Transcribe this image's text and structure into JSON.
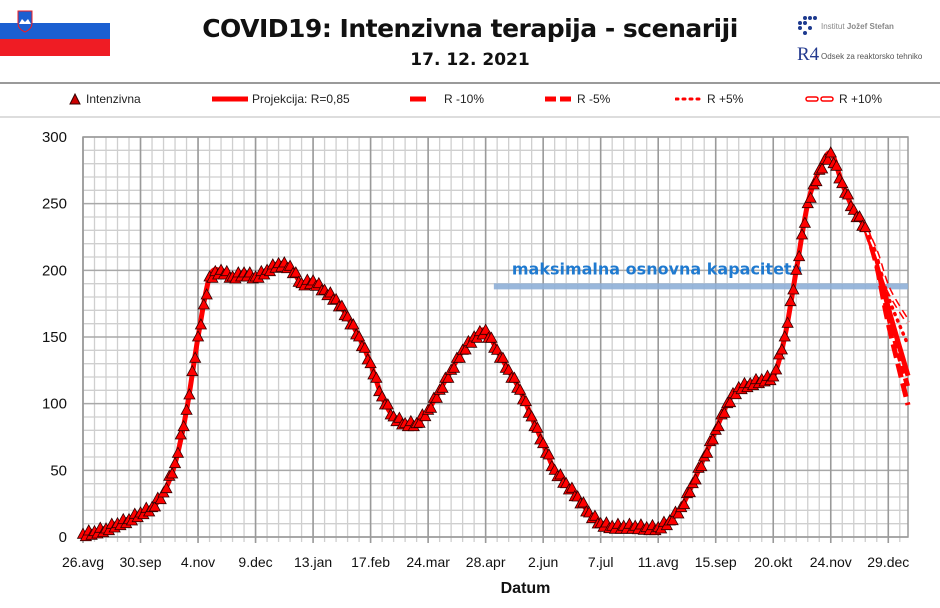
{
  "header": {
    "title": "COVID19: Intenzivna terapija - scenariji",
    "date": "17. 12. 2021",
    "flag_icon": "slovenia-flag-icon",
    "logo1_text_prefix": "Institut",
    "logo1_text_name": "Jožef Stefan",
    "logo2_mark": "R4",
    "logo2_text": "Odsek za reaktorsko tehniko"
  },
  "chart_data": {
    "type": "line",
    "title": "COVID19: Intenzivna terapija - scenariji",
    "xlabel": "Datum",
    "ylabel": "",
    "ylim": [
      0,
      300
    ],
    "yticks": [
      0,
      50,
      100,
      150,
      200,
      250,
      300
    ],
    "xlim": [
      "2020-08-26",
      "2022-01-10"
    ],
    "xticks": [
      {
        "date": "2020-08-26",
        "label": "26.avg"
      },
      {
        "date": "2020-09-30",
        "label": "30.sep"
      },
      {
        "date": "2020-11-04",
        "label": "4.nov"
      },
      {
        "date": "2020-12-09",
        "label": "9.dec"
      },
      {
        "date": "2021-01-13",
        "label": "13.jan"
      },
      {
        "date": "2021-02-17",
        "label": "17.feb"
      },
      {
        "date": "2021-03-24",
        "label": "24.mar"
      },
      {
        "date": "2021-04-28",
        "label": "28.apr"
      },
      {
        "date": "2021-06-02",
        "label": "2.jun"
      },
      {
        "date": "2021-07-07",
        "label": "7.jul"
      },
      {
        "date": "2021-08-11",
        "label": "11.avg"
      },
      {
        "date": "2021-09-15",
        "label": "15.sep"
      },
      {
        "date": "2021-10-20",
        "label": "20.okt"
      },
      {
        "date": "2021-11-24",
        "label": "24.nov"
      },
      {
        "date": "2021-12-29",
        "label": "29.dec"
      }
    ],
    "grid": true,
    "legend_position": "top",
    "colors": {
      "series": "#ff0000",
      "capacity": "#8fb0d8",
      "capacity_text": "#1f7ad0"
    },
    "capacity_line": {
      "label": "maksimalna  osnovna  kapaciteta",
      "value": 188,
      "from": "2021-05-03"
    },
    "observed": {
      "name": "Intenzivna",
      "points": [
        [
          "2020-08-26",
          2
        ],
        [
          "2020-09-02",
          4
        ],
        [
          "2020-09-09",
          6
        ],
        [
          "2020-09-16",
          10
        ],
        [
          "2020-09-23",
          13
        ],
        [
          "2020-09-30",
          18
        ],
        [
          "2020-10-07",
          22
        ],
        [
          "2020-10-14",
          33
        ],
        [
          "2020-10-21",
          55
        ],
        [
          "2020-10-28",
          95
        ],
        [
          "2020-11-04",
          150
        ],
        [
          "2020-11-11",
          195
        ],
        [
          "2020-11-18",
          200
        ],
        [
          "2020-11-25",
          195
        ],
        [
          "2020-12-02",
          198
        ],
        [
          "2020-12-09",
          195
        ],
        [
          "2020-12-16",
          200
        ],
        [
          "2020-12-23",
          205
        ],
        [
          "2020-12-30",
          203
        ],
        [
          "2021-01-06",
          190
        ],
        [
          "2021-01-13",
          192
        ],
        [
          "2021-01-20",
          185
        ],
        [
          "2021-01-27",
          178
        ],
        [
          "2021-02-03",
          165
        ],
        [
          "2021-02-10",
          150
        ],
        [
          "2021-02-17",
          130
        ],
        [
          "2021-02-24",
          105
        ],
        [
          "2021-03-03",
          90
        ],
        [
          "2021-03-10",
          85
        ],
        [
          "2021-03-17",
          85
        ],
        [
          "2021-03-24",
          95
        ],
        [
          "2021-03-31",
          110
        ],
        [
          "2021-04-07",
          125
        ],
        [
          "2021-04-14",
          140
        ],
        [
          "2021-04-21",
          150
        ],
        [
          "2021-04-28",
          155
        ],
        [
          "2021-05-05",
          140
        ],
        [
          "2021-05-12",
          125
        ],
        [
          "2021-05-19",
          110
        ],
        [
          "2021-05-26",
          90
        ],
        [
          "2021-06-02",
          70
        ],
        [
          "2021-06-09",
          50
        ],
        [
          "2021-06-16",
          40
        ],
        [
          "2021-06-23",
          30
        ],
        [
          "2021-06-30",
          18
        ],
        [
          "2021-07-07",
          10
        ],
        [
          "2021-07-14",
          8
        ],
        [
          "2021-07-21",
          8
        ],
        [
          "2021-07-28",
          8
        ],
        [
          "2021-08-04",
          7
        ],
        [
          "2021-08-11",
          7
        ],
        [
          "2021-08-18",
          12
        ],
        [
          "2021-08-25",
          22
        ],
        [
          "2021-09-01",
          40
        ],
        [
          "2021-09-08",
          60
        ],
        [
          "2021-09-15",
          80
        ],
        [
          "2021-09-22",
          100
        ],
        [
          "2021-09-29",
          112
        ],
        [
          "2021-10-06",
          115
        ],
        [
          "2021-10-13",
          118
        ],
        [
          "2021-10-20",
          120
        ],
        [
          "2021-10-27",
          150
        ],
        [
          "2021-11-03",
          200
        ],
        [
          "2021-11-10",
          250
        ],
        [
          "2021-11-17",
          275
        ],
        [
          "2021-11-24",
          288
        ],
        [
          "2021-12-01",
          265
        ],
        [
          "2021-12-08",
          245
        ],
        [
          "2021-12-15",
          232
        ]
      ]
    },
    "projections": [
      {
        "name": "Projekcija: R=0,85",
        "style": "solid",
        "points": [
          [
            "2021-12-15",
            232
          ],
          [
            "2021-12-22",
            208
          ],
          [
            "2021-12-29",
            172
          ],
          [
            "2022-01-10",
            121
          ]
        ]
      },
      {
        "name": "R -10%",
        "style": "longdash",
        "points": [
          [
            "2021-12-15",
            232
          ],
          [
            "2021-12-22",
            203
          ],
          [
            "2021-12-29",
            160
          ],
          [
            "2022-01-10",
            99
          ]
        ]
      },
      {
        "name": "R -5%",
        "style": "dash",
        "points": [
          [
            "2021-12-15",
            232
          ],
          [
            "2021-12-22",
            205
          ],
          [
            "2021-12-29",
            166
          ],
          [
            "2022-01-10",
            112
          ]
        ]
      },
      {
        "name": "R +5%",
        "style": "dot",
        "points": [
          [
            "2021-12-15",
            232
          ],
          [
            "2021-12-22",
            210
          ],
          [
            "2021-12-29",
            180
          ],
          [
            "2022-01-10",
            144
          ]
        ]
      },
      {
        "name": "R +10%",
        "style": "hollowdash",
        "points": [
          [
            "2021-12-15",
            232
          ],
          [
            "2021-12-22",
            212
          ],
          [
            "2021-12-29",
            186
          ],
          [
            "2022-01-10",
            161
          ]
        ]
      }
    ]
  }
}
